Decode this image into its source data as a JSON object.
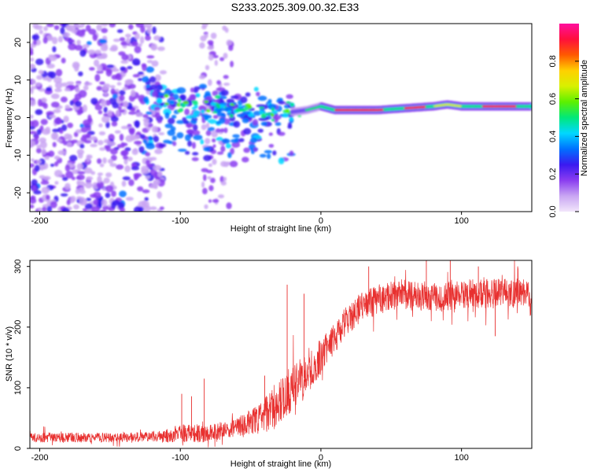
{
  "figure": {
    "title": "S233.2025.309.00.32.E33"
  },
  "chart_data": [
    {
      "type": "heatmap",
      "name": "spectrogram",
      "xlabel": "Height of straight line (km)",
      "ylabel": "Frequency (Hz)",
      "xlim": [
        -207,
        150
      ],
      "ylim": [
        -25,
        25
      ],
      "xticks": [
        -200,
        -100,
        0,
        100
      ],
      "xtick_labels": [
        "-200",
        "-100",
        "0",
        "100"
      ],
      "yticks": [
        -20,
        -10,
        0,
        10,
        20
      ],
      "ytick_labels": [
        "-20",
        "-10",
        "0",
        "10",
        "20"
      ],
      "colorbar": {
        "label": "Normalized spectral amplitude",
        "range": [
          0,
          1
        ],
        "ticks": [
          0.0,
          0.2,
          0.4,
          0.6,
          0.8
        ],
        "tick_labels": [
          "0.0",
          "0.2",
          "0.4",
          "0.6",
          "0.8"
        ],
        "colors": [
          "#f2e6fb",
          "#c9a6f3",
          "#8a3cf0",
          "#3a1af0",
          "#0070ff",
          "#00d8ff",
          "#00e87a",
          "#5cf000",
          "#d8f000",
          "#ffd000",
          "#ff5a00",
          "#ff0f3c",
          "#ff0f9e"
        ]
      },
      "ridge": {
        "description": "dominant frequency vs height",
        "x": [
          -120,
          -110,
          -100,
          -90,
          -80,
          -70,
          -60,
          -50,
          -40,
          -30,
          -20,
          -10,
          0,
          10,
          20,
          40,
          60,
          80,
          90,
          100,
          120,
          150
        ],
        "y": [
          6,
          5,
          4,
          3,
          3,
          3,
          2.5,
          2,
          1.5,
          1,
          1.5,
          2,
          3,
          2,
          2,
          2,
          2.5,
          3,
          3.5,
          3,
          3,
          3
        ]
      }
    },
    {
      "type": "line",
      "name": "snr",
      "xlabel": "Height of straight line (km)",
      "ylabel": "SNR (10 * v/v)",
      "xlim": [
        -207,
        150
      ],
      "ylim": [
        0,
        310
      ],
      "xticks": [
        -200,
        -100,
        0,
        100
      ],
      "xtick_labels": [
        "-200",
        "-100",
        "0",
        "100"
      ],
      "yticks": [
        0,
        100,
        200,
        300
      ],
      "ytick_labels": [
        "0",
        "100",
        "200",
        "300"
      ],
      "color": "#e8302f",
      "trend": {
        "x": [
          -207,
          -150,
          -110,
          -100,
          -80,
          -60,
          -40,
          -30,
          -20,
          -10,
          0,
          10,
          20,
          30,
          40,
          60,
          80,
          100,
          120,
          150
        ],
        "y": [
          18,
          18,
          20,
          25,
          25,
          35,
          55,
          75,
          100,
          120,
          150,
          185,
          215,
          235,
          245,
          255,
          250,
          255,
          255,
          258
        ]
      },
      "noise_amplitude": {
        "x": [
          -207,
          -120,
          -100,
          -60,
          -40,
          -20,
          0,
          20,
          60,
          150
        ],
        "y": [
          8,
          8,
          15,
          15,
          30,
          40,
          30,
          25,
          25,
          25
        ]
      },
      "spikes": [
        {
          "x": -99,
          "y": 90
        },
        {
          "x": -92,
          "y": 86
        },
        {
          "x": -83,
          "y": 115
        },
        {
          "x": -40,
          "y": 120
        },
        {
          "x": -24,
          "y": 270
        },
        {
          "x": -12,
          "y": 255
        },
        {
          "x": 34,
          "y": 300
        },
        {
          "x": 75,
          "y": 310
        },
        {
          "x": 92,
          "y": 310
        },
        {
          "x": 112,
          "y": 300
        },
        {
          "x": 124,
          "y": 185
        },
        {
          "x": 140,
          "y": 300
        }
      ]
    }
  ]
}
